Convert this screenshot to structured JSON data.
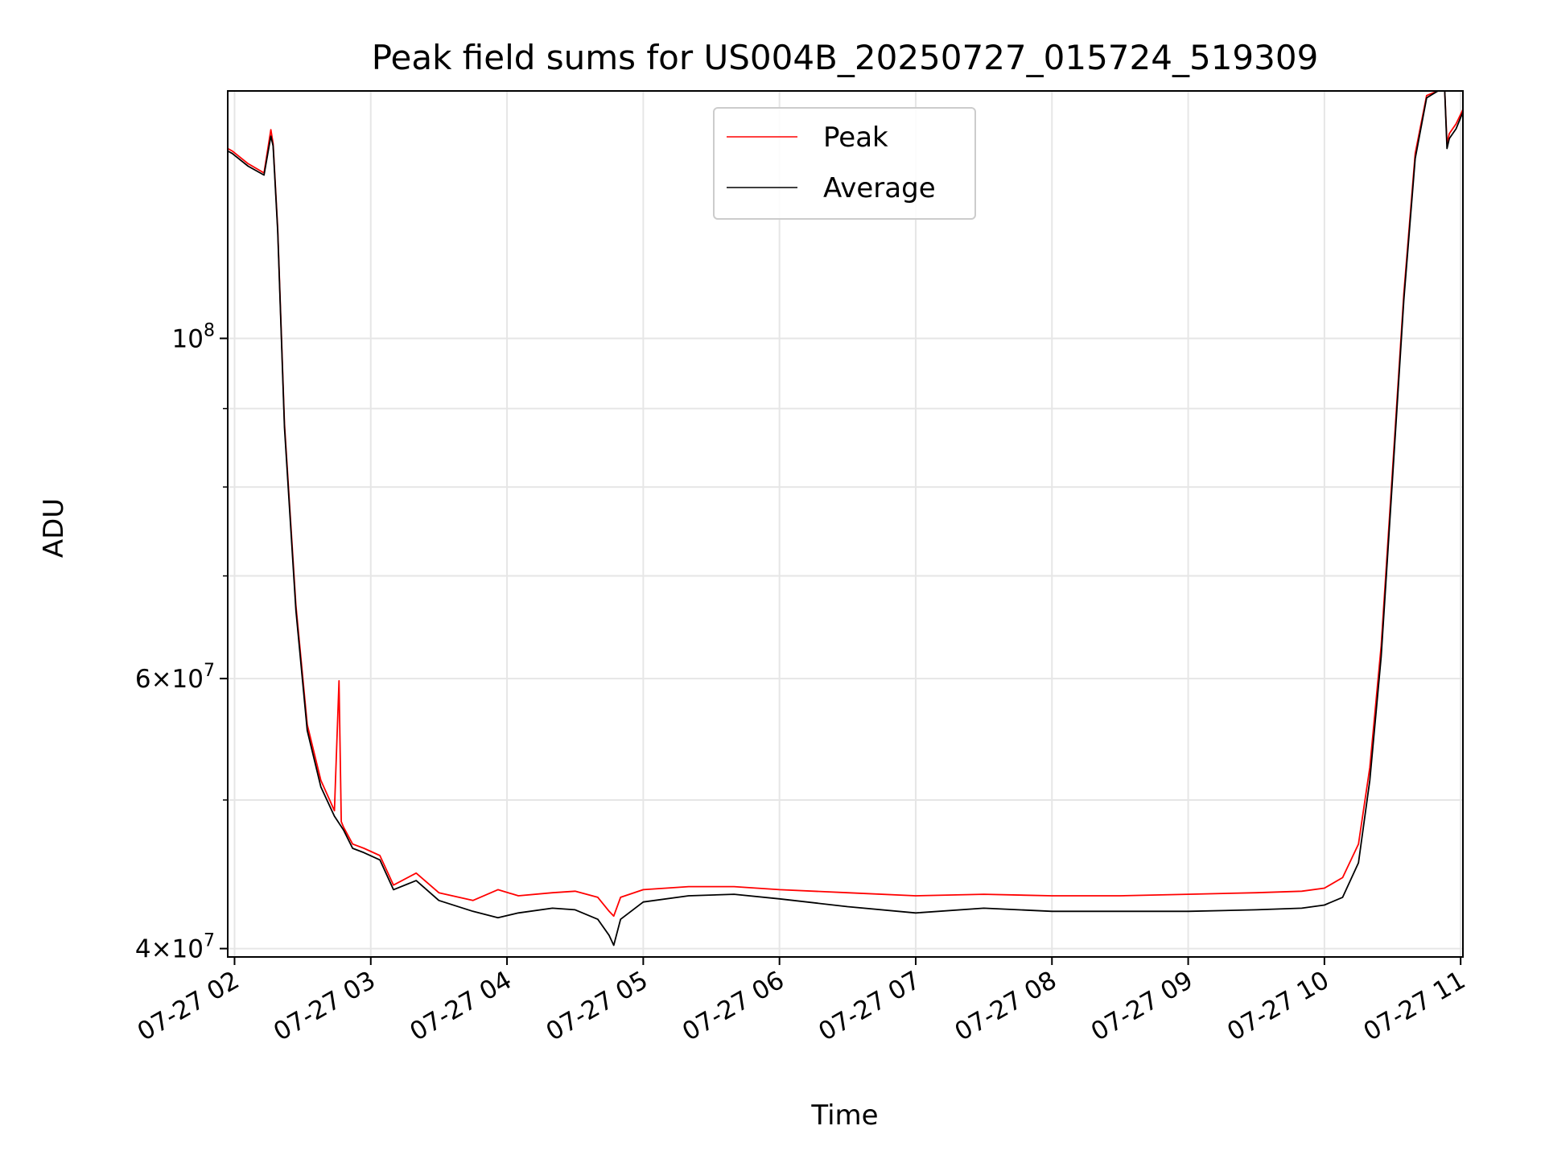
{
  "chart_data": {
    "type": "line",
    "title": "Peak field sums for US004B_20250727_015724_519309",
    "xlabel": "Time",
    "ylabel": "ADU",
    "yscale": "log",
    "ylim": [
      39500000,
      145000000
    ],
    "xlim": [
      "2025-07-27 01:57",
      "2025-07-27 11:01"
    ],
    "grid": true,
    "legend_position": "top-center",
    "x_ticks": [
      "07-27 02",
      "07-27 03",
      "07-27 04",
      "07-27 05",
      "07-27 06",
      "07-27 07",
      "07-27 08",
      "07-27 09",
      "07-27 10",
      "07-27 11"
    ],
    "y_tick_labels": [
      {
        "value": 40000000,
        "mant": "4",
        "exp": "7"
      },
      {
        "value": 60000000,
        "mant": "6",
        "exp": "7"
      },
      {
        "value": 100000000,
        "mant": "10",
        "exp": "8"
      }
    ],
    "y_minor_ticks": [
      50000000,
      70000000,
      80000000,
      90000000
    ],
    "colors": {
      "peak": "#ff0000",
      "average": "#000000"
    },
    "series": [
      {
        "name": "Peak",
        "x": [
          "2025-07-27 01:57",
          "2025-07-27 01:59",
          "2025-07-27 02:06",
          "2025-07-27 02:13",
          "2025-07-27 02:16",
          "2025-07-27 02:17",
          "2025-07-27 02:19",
          "2025-07-27 02:22",
          "2025-07-27 02:27",
          "2025-07-27 02:32",
          "2025-07-27 02:38",
          "2025-07-27 02:44",
          "2025-07-27 02:46",
          "2025-07-27 02:47",
          "2025-07-27 02:48",
          "2025-07-27 02:52",
          "2025-07-27 02:57",
          "2025-07-27 03:04",
          "2025-07-27 03:10",
          "2025-07-27 03:20",
          "2025-07-27 03:30",
          "2025-07-27 03:45",
          "2025-07-27 03:56",
          "2025-07-27 04:05",
          "2025-07-27 04:20",
          "2025-07-27 04:30",
          "2025-07-27 04:40",
          "2025-07-27 04:45",
          "2025-07-27 04:47",
          "2025-07-27 04:50",
          "2025-07-27 05:00",
          "2025-07-27 05:20",
          "2025-07-27 05:40",
          "2025-07-27 06:00",
          "2025-07-27 06:30",
          "2025-07-27 07:00",
          "2025-07-27 07:30",
          "2025-07-27 08:00",
          "2025-07-27 08:30",
          "2025-07-27 09:00",
          "2025-07-27 09:30",
          "2025-07-27 09:50",
          "2025-07-27 10:00",
          "2025-07-27 10:08",
          "2025-07-27 10:15",
          "2025-07-27 10:20",
          "2025-07-27 10:25",
          "2025-07-27 10:30",
          "2025-07-27 10:35",
          "2025-07-27 10:40",
          "2025-07-27 10:45",
          "2025-07-27 10:50",
          "2025-07-27 10:53",
          "2025-07-27 10:54",
          "2025-07-27 10:55",
          "2025-07-27 10:58",
          "2025-07-27 11:01"
        ],
        "y": [
          133000000,
          132500000,
          130000000,
          128200000,
          136800000,
          134000000,
          118000000,
          88000000,
          67000000,
          56000000,
          51500000,
          49200000,
          59800000,
          48400000,
          48000000,
          46800000,
          46500000,
          46000000,
          44000000,
          44800000,
          43500000,
          43000000,
          43700000,
          43300000,
          43500000,
          43600000,
          43200000,
          42300000,
          42000000,
          43200000,
          43700000,
          43900000,
          43900000,
          43700000,
          43500000,
          43300000,
          43400000,
          43300000,
          43300000,
          43400000,
          43500000,
          43600000,
          43800000,
          44500000,
          46800000,
          52500000,
          63000000,
          82000000,
          107000000,
          132000000,
          144000000,
          145000000,
          145000000,
          134000000,
          136000000,
          138000000,
          141000000
        ]
      },
      {
        "name": "Average",
        "x": [
          "2025-07-27 01:57",
          "2025-07-27 01:59",
          "2025-07-27 02:06",
          "2025-07-27 02:13",
          "2025-07-27 02:16",
          "2025-07-27 02:17",
          "2025-07-27 02:19",
          "2025-07-27 02:22",
          "2025-07-27 02:27",
          "2025-07-27 02:32",
          "2025-07-27 02:38",
          "2025-07-27 02:44",
          "2025-07-27 02:48",
          "2025-07-27 02:52",
          "2025-07-27 02:57",
          "2025-07-27 03:04",
          "2025-07-27 03:10",
          "2025-07-27 03:20",
          "2025-07-27 03:30",
          "2025-07-27 03:45",
          "2025-07-27 03:56",
          "2025-07-27 04:05",
          "2025-07-27 04:20",
          "2025-07-27 04:30",
          "2025-07-27 04:40",
          "2025-07-27 04:45",
          "2025-07-27 04:47",
          "2025-07-27 04:50",
          "2025-07-27 05:00",
          "2025-07-27 05:20",
          "2025-07-27 05:40",
          "2025-07-27 06:00",
          "2025-07-27 06:30",
          "2025-07-27 07:00",
          "2025-07-27 07:30",
          "2025-07-27 08:00",
          "2025-07-27 08:30",
          "2025-07-27 09:00",
          "2025-07-27 09:30",
          "2025-07-27 09:50",
          "2025-07-27 10:00",
          "2025-07-27 10:08",
          "2025-07-27 10:15",
          "2025-07-27 10:20",
          "2025-07-27 10:25",
          "2025-07-27 10:30",
          "2025-07-27 10:35",
          "2025-07-27 10:40",
          "2025-07-27 10:45",
          "2025-07-27 10:50",
          "2025-07-27 10:53",
          "2025-07-27 10:54",
          "2025-07-27 10:55",
          "2025-07-27 10:58",
          "2025-07-27 11:01"
        ],
        "y": [
          132500000,
          132000000,
          129500000,
          127800000,
          135500000,
          133500000,
          117500000,
          87500000,
          66500000,
          55500000,
          51000000,
          48800000,
          47800000,
          46500000,
          46200000,
          45700000,
          43700000,
          44300000,
          43000000,
          42300000,
          41900000,
          42200000,
          42500000,
          42400000,
          41800000,
          40800000,
          40200000,
          41800000,
          42900000,
          43300000,
          43400000,
          43100000,
          42600000,
          42200000,
          42500000,
          42300000,
          42300000,
          42300000,
          42400000,
          42500000,
          42700000,
          43200000,
          45500000,
          51500000,
          62000000,
          81000000,
          106000000,
          131000000,
          143500000,
          145000000,
          145000000,
          133000000,
          135000000,
          137000000,
          140500000
        ]
      }
    ]
  }
}
